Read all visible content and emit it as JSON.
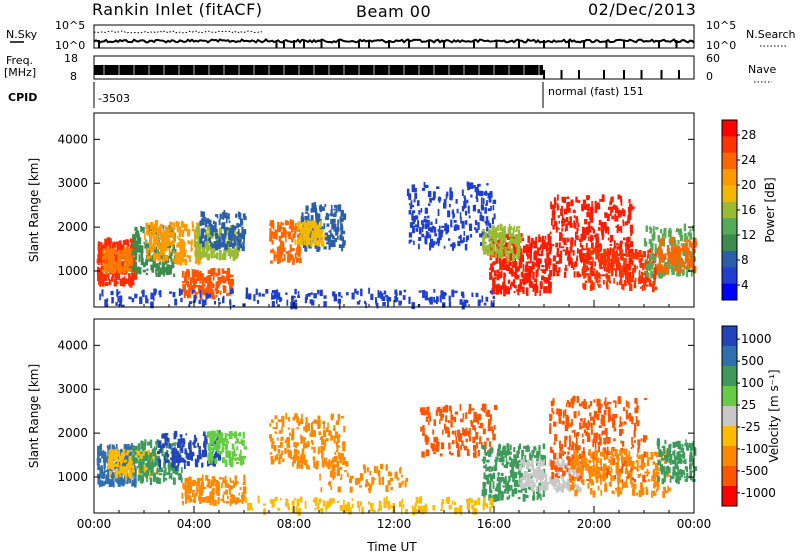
{
  "header": {
    "station": "Rankin Inlet (fitACF)",
    "beam": "Beam 00",
    "date": "02/Dec/2013"
  },
  "strips": {
    "nsky_label": "N.Sky",
    "nsearch_label": "N.Search",
    "freq_label_1": "Freq.",
    "freq_label_2": "[MHz]",
    "nave_label": "Nave",
    "cpid_label": "CPID",
    "noise_ticks": [
      "10^5",
      "10^0"
    ],
    "freq_ticks": [
      "18",
      "8"
    ],
    "nave_ticks": [
      "60",
      "0"
    ],
    "cpid_1": "-3503",
    "cpid_2": "normal (fast) 151"
  },
  "chart_data": [
    {
      "type": "heatmap",
      "name": "power-panel",
      "ylabel": "Slant Range [km]",
      "yticks": [
        1000,
        2000,
        3000,
        4000
      ],
      "ylim": [
        180,
        4600
      ],
      "xlim": [
        0,
        24
      ],
      "colorbar_label": "Power [dB]",
      "colorbar_ticks": [
        "28",
        "24",
        "20",
        "16",
        "12",
        "8",
        "4"
      ],
      "colorbar_colors": [
        "#ff0000",
        "#ff3300",
        "#ff6600",
        "#ff9900",
        "#f2b800",
        "#99bb33",
        "#55aa55",
        "#3d8a4d",
        "#2a5ea8",
        "#1f3fd0",
        "#0000ff"
      ],
      "blobs": [
        {
          "t0": 0.1,
          "t1": 1.6,
          "r0": 700,
          "r1": 1700,
          "c": "#ff2a00",
          "n": 260
        },
        {
          "t0": 0.3,
          "t1": 1.5,
          "r0": 1000,
          "r1": 1500,
          "c": "#ff7a00",
          "n": 120
        },
        {
          "t0": 1.5,
          "t1": 3.2,
          "r0": 900,
          "r1": 2000,
          "c": "#3d8a4d",
          "n": 160
        },
        {
          "t0": 2.0,
          "t1": 4.2,
          "r0": 1200,
          "r1": 2100,
          "c": "#ff9900",
          "n": 180
        },
        {
          "t0": 3.5,
          "t1": 5.5,
          "r0": 400,
          "r1": 1000,
          "c": "#ff5500",
          "n": 160
        },
        {
          "t0": 4.0,
          "t1": 5.8,
          "r0": 1300,
          "r1": 2000,
          "c": "#99bb33",
          "n": 160
        },
        {
          "t0": 4.2,
          "t1": 6.0,
          "r0": 1500,
          "r1": 2300,
          "c": "#2a5ea8",
          "n": 120
        },
        {
          "t0": 7.0,
          "t1": 8.2,
          "r0": 1200,
          "r1": 2100,
          "c": "#ff6600",
          "n": 130
        },
        {
          "t0": 8.2,
          "t1": 10.0,
          "r0": 1500,
          "r1": 2500,
          "c": "#2a5ea8",
          "n": 140
        },
        {
          "t0": 8.0,
          "t1": 9.2,
          "r0": 1600,
          "r1": 2100,
          "c": "#f2b800",
          "n": 80
        },
        {
          "t0": 12.5,
          "t1": 16.0,
          "r0": 1500,
          "r1": 3000,
          "c": "#1f3fd0",
          "n": 220
        },
        {
          "t0": 15.8,
          "t1": 18.2,
          "r0": 500,
          "r1": 1800,
          "c": "#ff1a00",
          "n": 320
        },
        {
          "t0": 15.5,
          "t1": 17.0,
          "r0": 1300,
          "r1": 2000,
          "c": "#99bb33",
          "n": 120
        },
        {
          "t0": 18.2,
          "t1": 21.5,
          "r0": 900,
          "r1": 2700,
          "c": "#ff1a00",
          "n": 340
        },
        {
          "t0": 19.5,
          "t1": 22.5,
          "r0": 600,
          "r1": 1500,
          "c": "#ff3300",
          "n": 220
        },
        {
          "t0": 22.0,
          "t1": 24.0,
          "r0": 900,
          "r1": 2000,
          "c": "#55aa55",
          "n": 160
        },
        {
          "t0": 22.5,
          "t1": 24.0,
          "r0": 1000,
          "r1": 1700,
          "c": "#ff6600",
          "n": 120
        },
        {
          "t0": 0.2,
          "t1": 16.0,
          "r0": 200,
          "r1": 550,
          "c": "#1f3fd0",
          "n": 200
        }
      ]
    },
    {
      "type": "heatmap",
      "name": "velocity-panel",
      "ylabel": "Slant Range [km]",
      "yticks": [
        1000,
        2000,
        3000,
        4000
      ],
      "ylim": [
        180,
        4600
      ],
      "xlim": [
        0,
        24
      ],
      "xticks": [
        "00:00",
        "04:00",
        "08:00",
        "12:00",
        "16:00",
        "20:00",
        "00:00"
      ],
      "xlabel": "Time UT",
      "colorbar_label": "Velocity [m s⁻¹]",
      "colorbar_ticks": [
        "1000",
        "500",
        "100",
        "25",
        "-25",
        "-100",
        "-500",
        "-1000"
      ],
      "colorbar_colors": [
        "#2244bb",
        "#2f6fb0",
        "#3d9a5a",
        "#66cc44",
        "#c8c8c8",
        "#ffbb00",
        "#ff8800",
        "#ff5500",
        "#ff0000"
      ],
      "blobs": [
        {
          "t0": 0.1,
          "t1": 1.6,
          "r0": 800,
          "r1": 1700,
          "c": "#2f6fb0",
          "n": 200
        },
        {
          "t0": 0.5,
          "t1": 2.5,
          "r0": 1000,
          "r1": 1600,
          "c": "#ffbb00",
          "n": 120
        },
        {
          "t0": 1.5,
          "t1": 3.5,
          "r0": 900,
          "r1": 1800,
          "c": "#3d9a5a",
          "n": 160
        },
        {
          "t0": 2.5,
          "t1": 5.0,
          "r0": 1200,
          "r1": 2000,
          "c": "#2244bb",
          "n": 140
        },
        {
          "t0": 3.5,
          "t1": 6.0,
          "r0": 400,
          "r1": 1000,
          "c": "#ff8800",
          "n": 150
        },
        {
          "t0": 4.5,
          "t1": 6.0,
          "r0": 1300,
          "r1": 2000,
          "c": "#66cc44",
          "n": 110
        },
        {
          "t0": 7.0,
          "t1": 10.0,
          "r0": 1200,
          "r1": 2400,
          "c": "#ff8800",
          "n": 200
        },
        {
          "t0": 9.0,
          "t1": 12.5,
          "r0": 700,
          "r1": 1300,
          "c": "#ff8800",
          "n": 70
        },
        {
          "t0": 13.0,
          "t1": 16.0,
          "r0": 1500,
          "r1": 2600,
          "c": "#ff5500",
          "n": 150
        },
        {
          "t0": 15.5,
          "t1": 18.0,
          "r0": 500,
          "r1": 1700,
          "c": "#3d9a5a",
          "n": 230
        },
        {
          "t0": 17.0,
          "t1": 19.5,
          "r0": 700,
          "r1": 1400,
          "c": "#c8c8c8",
          "n": 180
        },
        {
          "t0": 18.2,
          "t1": 22.0,
          "r0": 900,
          "r1": 2800,
          "c": "#ff5500",
          "n": 300
        },
        {
          "t0": 19.0,
          "t1": 23.0,
          "r0": 600,
          "r1": 1600,
          "c": "#ff8800",
          "n": 240
        },
        {
          "t0": 22.5,
          "t1": 24.0,
          "r0": 900,
          "r1": 1800,
          "c": "#3d9a5a",
          "n": 130
        },
        {
          "t0": 6.0,
          "t1": 16.0,
          "r0": 200,
          "r1": 500,
          "c": "#ffbb00",
          "n": 140
        }
      ]
    }
  ]
}
